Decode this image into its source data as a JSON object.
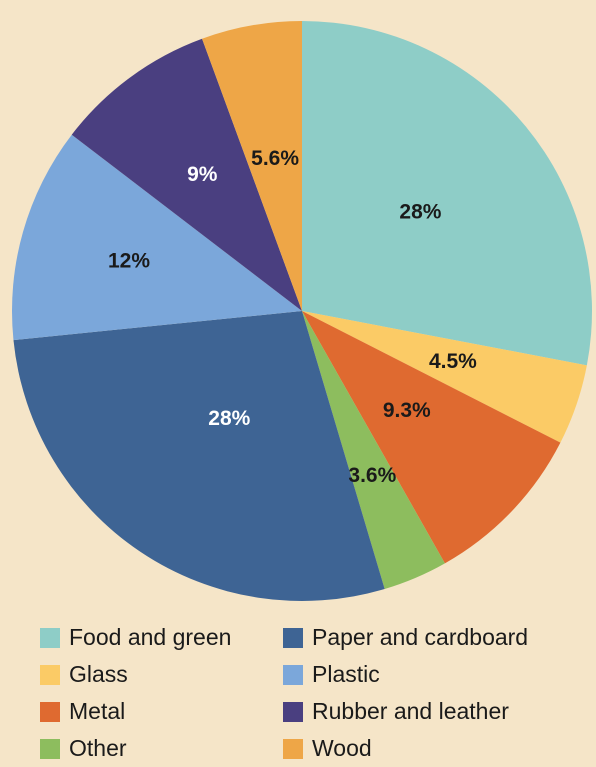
{
  "chart_data": {
    "type": "pie",
    "title": "",
    "slices": [
      {
        "name": "Food and green",
        "value": 28,
        "label": "28%",
        "color": "#8ecdc7",
        "label_color": "#1a1a1a"
      },
      {
        "name": "Glass",
        "value": 4.5,
        "label": "4.5%",
        "color": "#fbcb66",
        "label_color": "#1a1a1a"
      },
      {
        "name": "Metal",
        "value": 9.3,
        "label": "9.3%",
        "color": "#df6a30",
        "label_color": "#1a1a1a"
      },
      {
        "name": "Other",
        "value": 3.6,
        "label": "3.6%",
        "color": "#8dbd5e",
        "label_color": "#1a1a1a"
      },
      {
        "name": "Paper and cardboard",
        "value": 28,
        "label": "28%",
        "color": "#3e6494",
        "label_color": "#ffffff"
      },
      {
        "name": "Plastic",
        "value": 12,
        "label": "12%",
        "color": "#7ba7da",
        "label_color": "#1a1a1a"
      },
      {
        "name": "Rubber and leather",
        "value": 9,
        "label": "9%",
        "color": "#4a3f80",
        "label_color": "#ffffff"
      },
      {
        "name": "Wood",
        "value": 5.6,
        "label": "5.6%",
        "color": "#eea647",
        "label_color": "#1a1a1a"
      }
    ],
    "start_angle": "12 o'clock",
    "direction": "clockwise",
    "legend": {
      "position": "bottom",
      "columns": 2,
      "order": [
        "Food and green",
        "Paper and cardboard",
        "Glass",
        "Plastic",
        "Metal",
        "Rubber and leather",
        "Other",
        "Wood"
      ]
    }
  },
  "background_color": "#f5e5c8"
}
